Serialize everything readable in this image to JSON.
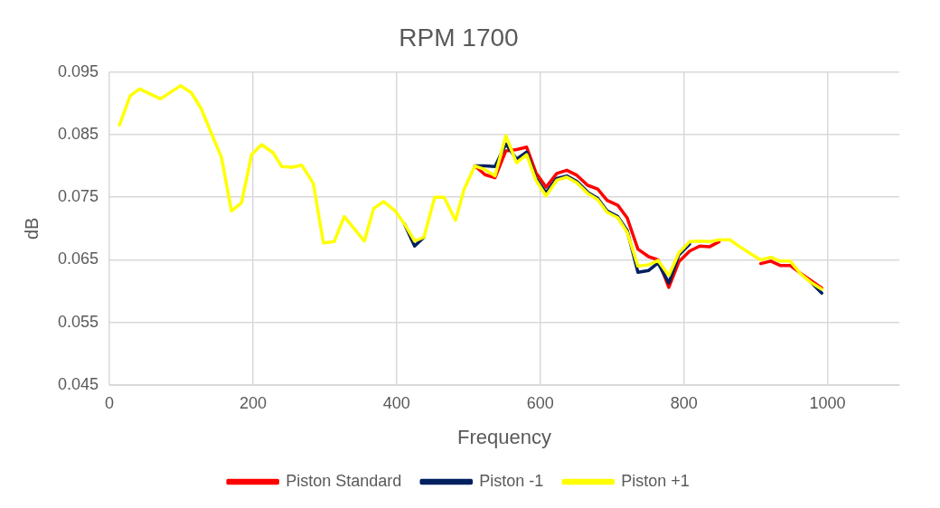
{
  "chart_data": {
    "type": "line",
    "title": "RPM 1700",
    "xlabel": "Frequency",
    "ylabel": "dB",
    "x": [
      14,
      29,
      42,
      71,
      99,
      114,
      128,
      142,
      156,
      170,
      184,
      198,
      212,
      228,
      240,
      254,
      268,
      284,
      298,
      313,
      327,
      342,
      355,
      368,
      382,
      398,
      411,
      425,
      438,
      453,
      466,
      482,
      494,
      509,
      523,
      537,
      552,
      567,
      581,
      594,
      608,
      623,
      637,
      651,
      666,
      680,
      693,
      708,
      721,
      736,
      751,
      764,
      779,
      793,
      808,
      822,
      836,
      849,
      864,
      879,
      894,
      907,
      921,
      934,
      948,
      963,
      978,
      992
    ],
    "series": [
      {
        "name": "Piston Standard",
        "color": "#ff0000",
        "values": [
          null,
          null,
          null,
          null,
          null,
          null,
          null,
          null,
          null,
          null,
          null,
          null,
          null,
          null,
          null,
          null,
          null,
          null,
          null,
          null,
          null,
          null,
          null,
          null,
          null,
          null,
          null,
          null,
          null,
          null,
          null,
          null,
          null,
          0.08,
          0.0786,
          0.0781,
          0.0824,
          0.0826,
          0.083,
          0.0789,
          0.0766,
          0.0788,
          0.0793,
          0.0785,
          0.0769,
          0.0763,
          0.0745,
          0.0737,
          0.0717,
          0.0667,
          0.0655,
          0.065,
          0.0606,
          0.0647,
          0.0664,
          0.0672,
          0.0671,
          0.0679,
          null,
          null,
          null,
          0.0644,
          0.0648,
          0.0641,
          0.0641,
          0.0628,
          0.0616,
          0.0605
        ]
      },
      {
        "name": "Piston -1",
        "color": "#002060",
        "values": [
          null,
          null,
          null,
          null,
          null,
          null,
          null,
          null,
          null,
          null,
          null,
          null,
          null,
          null,
          null,
          null,
          null,
          null,
          null,
          null,
          null,
          null,
          null,
          null,
          null,
          null,
          0.0707,
          0.0672,
          0.0686,
          null,
          null,
          null,
          null,
          0.08,
          0.08,
          0.0799,
          0.0835,
          0.0811,
          0.0822,
          0.078,
          0.0757,
          0.078,
          0.0784,
          0.0775,
          0.0758,
          0.0748,
          0.0728,
          0.0719,
          0.0697,
          0.063,
          0.0633,
          0.0645,
          0.0613,
          0.0658,
          0.0675,
          null,
          null,
          null,
          null,
          null,
          null,
          null,
          null,
          null,
          null,
          null,
          0.0613,
          0.0597
        ]
      },
      {
        "name": "Piston +1",
        "color": "#ffff00",
        "values": [
          0.0865,
          0.0912,
          0.0923,
          0.0907,
          0.0928,
          0.0917,
          0.0891,
          0.0852,
          0.0814,
          0.0728,
          0.0741,
          0.0818,
          0.0834,
          0.0821,
          0.0799,
          0.0798,
          0.0801,
          0.0772,
          0.0677,
          0.0679,
          0.0719,
          0.0698,
          0.068,
          0.0732,
          0.0743,
          0.0728,
          0.0707,
          0.068,
          0.0686,
          0.075,
          0.075,
          0.0713,
          0.0763,
          0.08,
          0.0794,
          0.0784,
          0.0848,
          0.0805,
          0.0818,
          0.0777,
          0.0752,
          0.0777,
          0.0782,
          0.0773,
          0.0756,
          0.0746,
          0.0726,
          0.0717,
          0.0694,
          0.064,
          0.0642,
          0.0649,
          0.0625,
          0.0661,
          0.0679,
          0.068,
          0.0679,
          0.0682,
          0.0682,
          0.067,
          0.0659,
          0.065,
          0.0654,
          0.0648,
          0.0648,
          0.0627,
          0.0613,
          0.0603
        ]
      }
    ],
    "xlim": [
      0,
      1100
    ],
    "xticks": [
      0,
      200,
      400,
      600,
      800,
      1000
    ],
    "ylim": [
      0.045,
      0.095
    ],
    "yticks": [
      0.045,
      0.055,
      0.065,
      0.075,
      0.085,
      0.095
    ],
    "grid": true,
    "legend": "bottom",
    "marker": "none",
    "line_style": "solid"
  }
}
